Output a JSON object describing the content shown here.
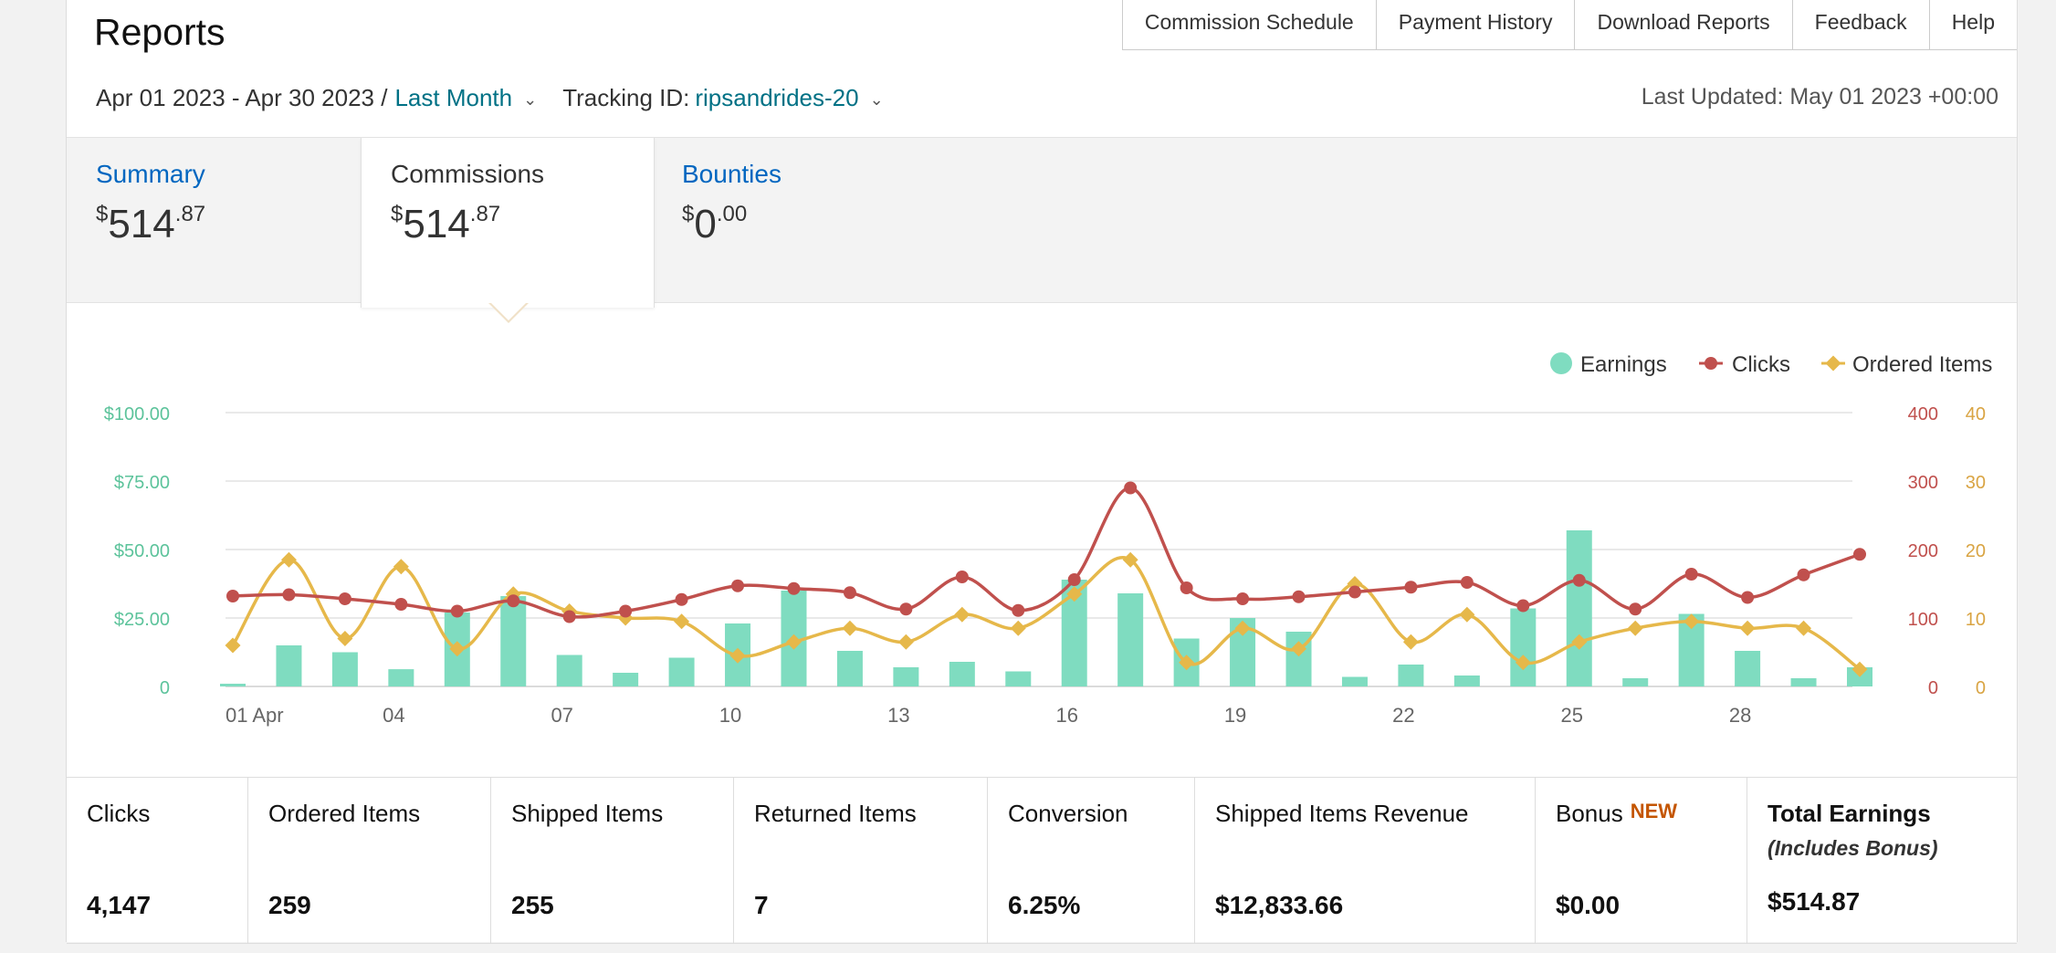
{
  "header": {
    "title": "Reports",
    "nav": [
      "Commission Schedule",
      "Payment History",
      "Download Reports",
      "Feedback",
      "Help"
    ]
  },
  "filters": {
    "date_range": "Apr 01 2023 - Apr 30 2023 /",
    "period": "Last Month",
    "tracking_label": "Tracking ID:",
    "tracking_id": "ripsandrides-20",
    "last_updated": "Last Updated: May 01 2023 +00:00"
  },
  "tabs": [
    {
      "label": "Summary",
      "currency": "$",
      "whole": "514",
      "cents": ".87"
    },
    {
      "label": "Commissions",
      "currency": "$",
      "whole": "514",
      "cents": ".87"
    },
    {
      "label": "Bounties",
      "currency": "$",
      "whole": "0",
      "cents": ".00"
    }
  ],
  "stats": {
    "clicks": {
      "label": "Clicks",
      "value": "4,147"
    },
    "ordered": {
      "label": "Ordered Items",
      "value": "259"
    },
    "shipped": {
      "label": "Shipped Items",
      "value": "255"
    },
    "returned": {
      "label": "Returned Items",
      "value": "7"
    },
    "conversion": {
      "label": "Conversion",
      "value": "6.25%"
    },
    "revenue": {
      "label": "Shipped Items Revenue",
      "value": "$12,833.66"
    },
    "bonus": {
      "label": "Bonus",
      "badge": "NEW",
      "value": "$0.00"
    },
    "total": {
      "label": "Total Earnings",
      "sublabel": "(Includes Bonus)",
      "value": "$514.87"
    }
  },
  "colors": {
    "earnings": "#7fdcc0",
    "clicks": "#c0504d",
    "ordered": "#e6b84a",
    "earnings_axis": "#5cc39b",
    "clicks_axis": "#c0504d",
    "ordered_axis": "#d9a443"
  },
  "chart_data": {
    "type": "bar",
    "x": [
      "01 Apr",
      "02",
      "03",
      "04",
      "05",
      "06",
      "07",
      "08",
      "09",
      "10",
      "11",
      "12",
      "13",
      "14",
      "15",
      "16",
      "17",
      "18",
      "19",
      "20",
      "21",
      "22",
      "23",
      "24",
      "25",
      "26",
      "27",
      "28",
      "29",
      "30"
    ],
    "xticks": [
      "01 Apr",
      "04",
      "07",
      "10",
      "13",
      "16",
      "19",
      "22",
      "25",
      "28"
    ],
    "series": [
      {
        "name": "Earnings",
        "type": "bar",
        "axis": "left",
        "values": [
          1.0,
          15.0,
          12.5,
          6.3,
          27.0,
          33.0,
          11.5,
          5.0,
          10.5,
          23.0,
          35.0,
          13.0,
          7.0,
          9.0,
          5.5,
          39.0,
          34.0,
          17.5,
          25.0,
          20.0,
          3.5,
          8.0,
          4.0,
          28.5,
          57.0,
          3.0,
          26.5,
          13.0,
          3.0,
          7.0
        ]
      },
      {
        "name": "Clicks",
        "type": "line",
        "axis": "right1",
        "values": [
          132,
          134,
          128,
          120,
          110,
          125,
          102,
          110,
          127,
          147,
          143,
          137,
          113,
          160,
          111,
          156,
          290,
          144,
          128,
          131,
          138,
          145,
          152,
          118,
          155,
          113,
          164,
          130,
          163,
          193
        ]
      },
      {
        "name": "Ordered Items",
        "type": "line",
        "axis": "right2",
        "values": [
          6,
          18.5,
          7,
          17.5,
          5.5,
          13.5,
          11,
          10,
          9.5,
          4.5,
          6.5,
          8.5,
          6.5,
          10.5,
          8.5,
          13.5,
          18.5,
          3.5,
          8.5,
          5.5,
          15,
          6.5,
          10.5,
          3.5,
          6.5,
          8.5,
          9.5,
          8.5,
          8.5,
          2.5
        ]
      }
    ],
    "axes": {
      "left": {
        "ticks": [
          "0",
          "$25.00",
          "$50.00",
          "$75.00",
          "$100.00"
        ],
        "range": [
          0,
          100
        ]
      },
      "right1": {
        "ticks": [
          "0",
          "100",
          "200",
          "300",
          "400"
        ],
        "range": [
          0,
          400
        ]
      },
      "right2": {
        "ticks": [
          "0",
          "10",
          "20",
          "30",
          "40"
        ],
        "range": [
          0,
          40
        ]
      }
    },
    "grid": true,
    "legend_position": "top-right"
  }
}
